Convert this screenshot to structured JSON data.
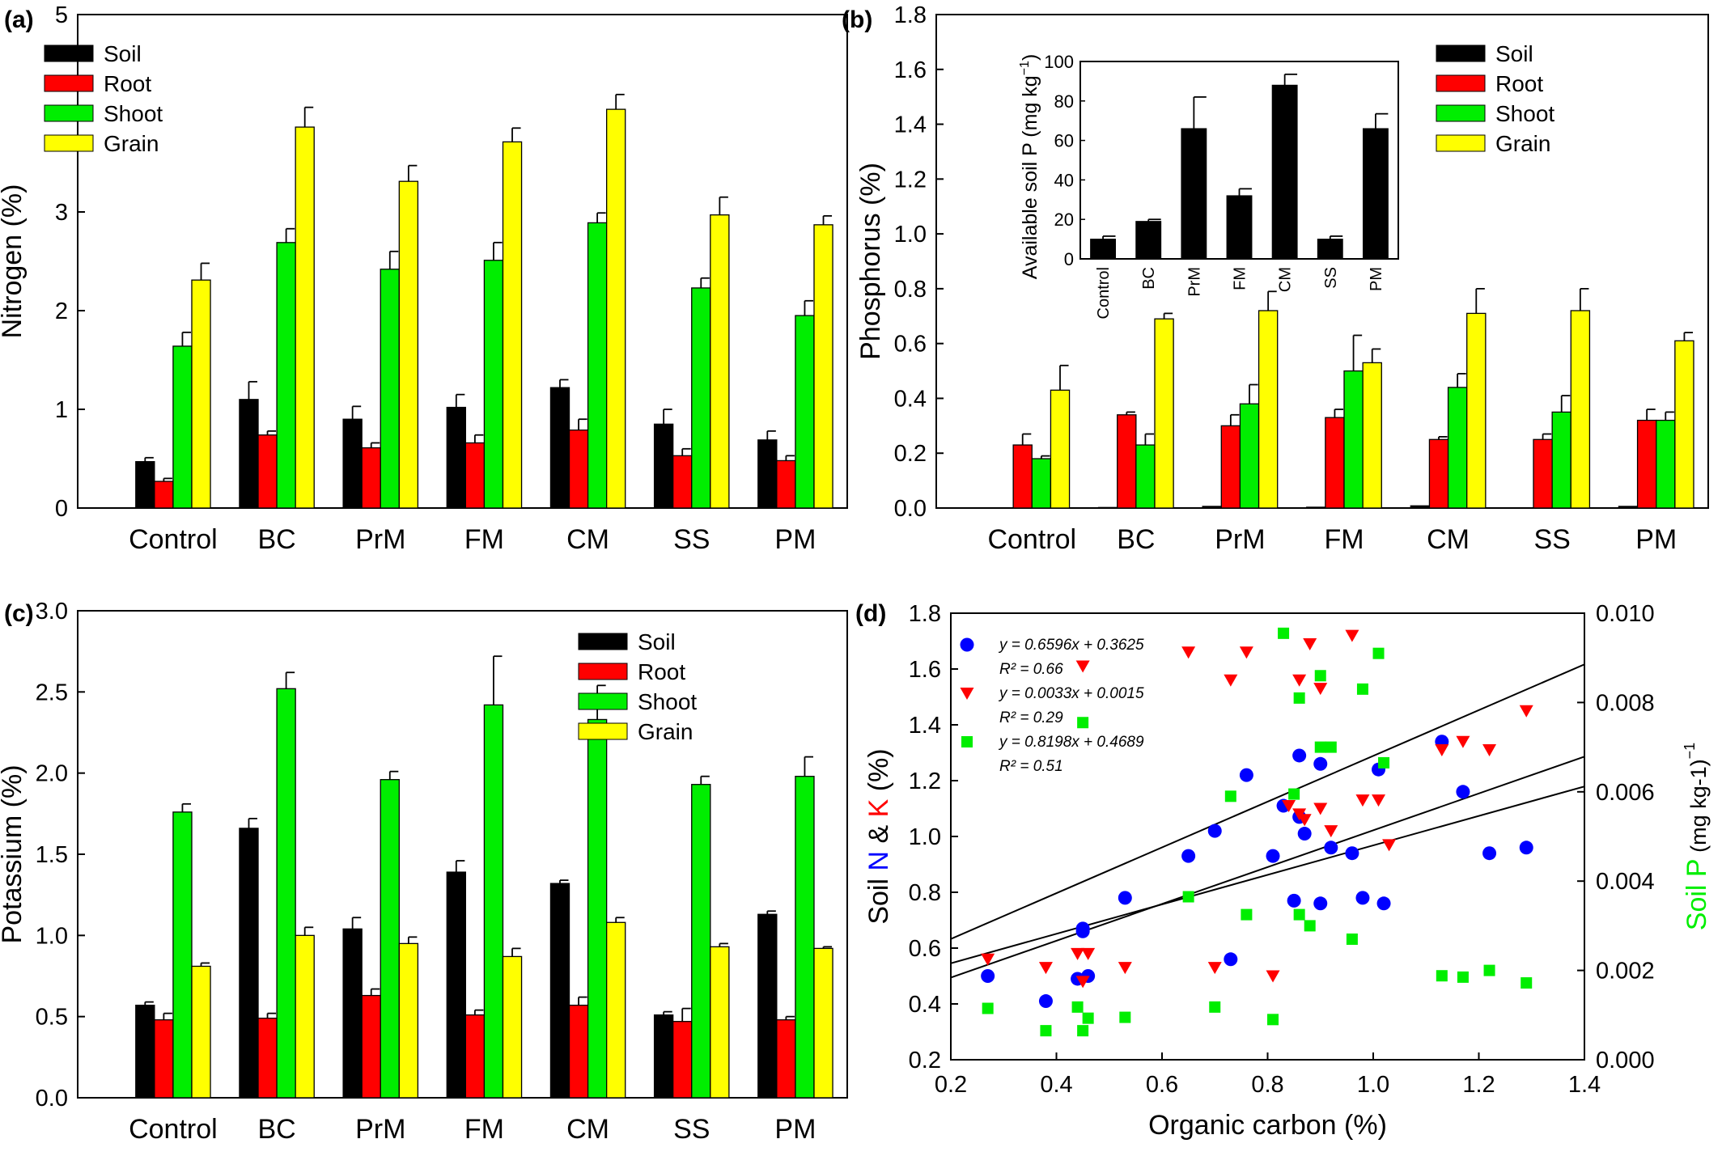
{
  "colors": {
    "soil": "#000000",
    "root": "#ff0000",
    "shoot": "#00ee00",
    "grain": "#ffff00",
    "scatter_n": "#0000ff",
    "scatter_k": "#ff0000",
    "scatter_p": "#00ee00"
  },
  "chart_data": [
    {
      "id": "a",
      "panel_label": "(a)",
      "type": "bar",
      "ylabel": "Nitrogen (%)",
      "xlabel": "",
      "ylim": [
        0,
        5
      ],
      "yticks": [
        0,
        1,
        2,
        3,
        4,
        5
      ],
      "ytick_labels": [
        "0",
        "1",
        "2",
        "3",
        "4",
        "5"
      ],
      "legend_position": "top-left",
      "categories": [
        "Control",
        "BC",
        "PrM",
        "FM",
        "CM",
        "SS",
        "PM"
      ],
      "series": [
        {
          "name": "Soil",
          "color": "#000000",
          "values": [
            0.47,
            1.1,
            0.9,
            1.02,
            1.22,
            0.85,
            0.69
          ],
          "errors": [
            0.04,
            0.18,
            0.13,
            0.13,
            0.08,
            0.15,
            0.09
          ]
        },
        {
          "name": "Root",
          "color": "#ff0000",
          "values": [
            0.27,
            0.74,
            0.61,
            0.66,
            0.79,
            0.53,
            0.48
          ],
          "errors": [
            0.03,
            0.04,
            0.05,
            0.08,
            0.11,
            0.07,
            0.05
          ]
        },
        {
          "name": "Shoot",
          "color": "#00ee00",
          "values": [
            1.64,
            2.69,
            2.42,
            2.51,
            2.89,
            2.23,
            1.95
          ],
          "errors": [
            0.14,
            0.14,
            0.18,
            0.18,
            0.1,
            0.1,
            0.15
          ]
        },
        {
          "name": "Grain",
          "color": "#ffff00",
          "values": [
            2.31,
            3.86,
            3.31,
            3.71,
            4.04,
            2.97,
            2.87
          ],
          "errors": [
            0.17,
            0.2,
            0.16,
            0.14,
            0.15,
            0.18,
            0.09
          ]
        }
      ]
    },
    {
      "id": "b",
      "panel_label": "(b)",
      "type": "bar",
      "ylabel": "Phosphorus (%)",
      "xlabel": "",
      "ylim": [
        0,
        1.8
      ],
      "yticks": [
        0,
        0.2,
        0.4,
        0.6,
        0.8,
        1.0,
        1.2,
        1.4,
        1.6,
        1.8
      ],
      "ytick_labels": [
        "0.0",
        "0.2",
        "0.4",
        "0.6",
        "0.8",
        "1.0",
        "1.2",
        "1.4",
        "1.6",
        "1.8"
      ],
      "legend_position": "top-right",
      "categories": [
        "Control",
        "BC",
        "PrM",
        "FM",
        "CM",
        "SS",
        "PM"
      ],
      "series": [
        {
          "name": "Soil",
          "color": "#000000",
          "values": [
            0.001,
            0.002,
            0.006,
            0.003,
            0.008,
            0.001,
            0.006
          ],
          "errors": [
            0,
            0,
            0,
            0,
            0,
            0,
            0
          ]
        },
        {
          "name": "Root",
          "color": "#ff0000",
          "values": [
            0.23,
            0.34,
            0.3,
            0.33,
            0.25,
            0.25,
            0.32
          ],
          "errors": [
            0.04,
            0.01,
            0.04,
            0.03,
            0.01,
            0.02,
            0.04
          ]
        },
        {
          "name": "Shoot",
          "color": "#00ee00",
          "values": [
            0.18,
            0.23,
            0.38,
            0.5,
            0.44,
            0.35,
            0.32
          ],
          "errors": [
            0.01,
            0.04,
            0.07,
            0.13,
            0.05,
            0.06,
            0.03
          ]
        },
        {
          "name": "Grain",
          "color": "#ffff00",
          "values": [
            0.43,
            0.69,
            0.72,
            0.53,
            0.71,
            0.72,
            0.61
          ],
          "errors": [
            0.09,
            0.02,
            0.07,
            0.05,
            0.09,
            0.08,
            0.03
          ]
        }
      ],
      "inset": {
        "type": "bar",
        "ylabel": "Available soil P (mg kg",
        "ylabel_sup": "−1",
        "ylabel_close": ")",
        "ylim": [
          0,
          100
        ],
        "yticks": [
          0,
          20,
          40,
          60,
          80,
          100
        ],
        "ytick_labels": [
          "0",
          "20",
          "40",
          "60",
          "80",
          "100"
        ],
        "categories": [
          "Control",
          "BC",
          "PrM",
          "FM",
          "CM",
          "SS",
          "PM"
        ],
        "values": [
          10,
          19,
          66,
          32,
          88,
          10,
          66
        ],
        "errors": [
          1.5,
          1.0,
          16,
          3.5,
          5.5,
          1.5,
          7.5
        ],
        "color": "#000000"
      }
    },
    {
      "id": "c",
      "panel_label": "(c)",
      "type": "bar",
      "ylabel": "Potassium (%)",
      "xlabel": "",
      "ylim": [
        0,
        3.0
      ],
      "yticks": [
        0,
        0.5,
        1.0,
        1.5,
        2.0,
        2.5,
        3.0
      ],
      "ytick_labels": [
        "0.0",
        "0.5",
        "1.0",
        "1.5",
        "2.0",
        "2.5",
        "3.0"
      ],
      "legend_position": "top-right",
      "categories": [
        "Control",
        "BC",
        "PrM",
        "FM",
        "CM",
        "SS",
        "PM"
      ],
      "series": [
        {
          "name": "Soil",
          "color": "#000000",
          "values": [
            0.57,
            1.66,
            1.04,
            1.39,
            1.32,
            0.51,
            1.13
          ],
          "errors": [
            0.02,
            0.06,
            0.07,
            0.07,
            0.02,
            0.02,
            0.02
          ]
        },
        {
          "name": "Root",
          "color": "#ff0000",
          "values": [
            0.48,
            0.49,
            0.63,
            0.51,
            0.57,
            0.47,
            0.48
          ],
          "errors": [
            0.04,
            0.03,
            0.04,
            0.03,
            0.05,
            0.08,
            0.02
          ]
        },
        {
          "name": "Shoot",
          "color": "#00ee00",
          "values": [
            1.76,
            2.52,
            1.96,
            2.42,
            2.33,
            1.93,
            1.98
          ],
          "errors": [
            0.05,
            0.1,
            0.05,
            0.3,
            0.21,
            0.05,
            0.12
          ]
        },
        {
          "name": "Grain",
          "color": "#ffff00",
          "values": [
            0.81,
            1.0,
            0.95,
            0.87,
            1.08,
            0.93,
            0.92
          ],
          "errors": [
            0.02,
            0.05,
            0.04,
            0.05,
            0.03,
            0.02,
            0.01
          ]
        }
      ]
    },
    {
      "id": "d",
      "panel_label": "(d)",
      "type": "scatter",
      "xlabel": "Organic carbon (%)",
      "ylabel_parts": [
        "Soil ",
        "N",
        " & ",
        "K",
        " (%)"
      ],
      "y2label_parts": [
        "Soil ",
        "P",
        " (mg kg-1)"
      ],
      "y2label_sup": "−1",
      "xlim": [
        0.2,
        1.4
      ],
      "ylim": [
        0.2,
        1.8
      ],
      "y2lim": [
        0.0,
        0.01
      ],
      "xticks": [
        0.2,
        0.4,
        0.6,
        0.8,
        1.0,
        1.2,
        1.4
      ],
      "xtick_labels": [
        "0.2",
        "0.4",
        "0.6",
        "0.8",
        "1.0",
        "1.2",
        "1.4"
      ],
      "yticks": [
        0.2,
        0.4,
        0.6,
        0.8,
        1.0,
        1.2,
        1.4,
        1.6,
        1.8
      ],
      "ytick_labels": [
        "0.2",
        "0.4",
        "0.6",
        "0.8",
        "1.0",
        "1.2",
        "1.4",
        "1.6",
        "1.8"
      ],
      "y2ticks": [
        0.0,
        0.002,
        0.004,
        0.006,
        0.008,
        0.01
      ],
      "y2tick_labels": [
        "0.000",
        "0.002",
        "0.004",
        "0.006",
        "0.008",
        "0.010"
      ],
      "legend_position": "top-left",
      "series": [
        {
          "marker": "circle",
          "color": "#0000ff",
          "axis": "left",
          "equation": "y = 0.6596x + 0.3625",
          "r2": "R² = 0.66",
          "fit": {
            "slope": 0.6596,
            "intercept": 0.3625
          },
          "points": [
            [
              0.27,
              0.5
            ],
            [
              0.38,
              0.41
            ],
            [
              0.44,
              0.49
            ],
            [
              0.45,
              0.66
            ],
            [
              0.45,
              0.67
            ],
            [
              0.46,
              0.5
            ],
            [
              0.53,
              0.78
            ],
            [
              0.65,
              0.93
            ],
            [
              0.7,
              1.02
            ],
            [
              0.73,
              0.56
            ],
            [
              0.76,
              1.22
            ],
            [
              0.81,
              0.93
            ],
            [
              0.83,
              1.11
            ],
            [
              0.85,
              0.77
            ],
            [
              0.86,
              1.07
            ],
            [
              0.86,
              1.29
            ],
            [
              0.87,
              1.01
            ],
            [
              0.9,
              1.26
            ],
            [
              0.9,
              0.76
            ],
            [
              0.92,
              0.96
            ],
            [
              0.96,
              0.94
            ],
            [
              0.98,
              0.78
            ],
            [
              1.01,
              1.24
            ],
            [
              1.02,
              0.76
            ],
            [
              1.13,
              1.34
            ],
            [
              1.17,
              1.16
            ],
            [
              1.22,
              0.94
            ],
            [
              1.29,
              0.96
            ]
          ]
        },
        {
          "marker": "triangle-down",
          "color": "#ff0000",
          "axis": "left",
          "equation": "y = 0.0033x + 0.0015",
          "r2": "R² = 0.29",
          "fit": {
            "slope": 0.0033,
            "intercept": 0.0015,
            "axis": "right"
          },
          "points": [
            [
              0.27,
              0.56
            ],
            [
              0.38,
              0.53
            ],
            [
              0.44,
              0.58
            ],
            [
              0.45,
              0.48
            ],
            [
              0.46,
              0.58
            ],
            [
              0.45,
              1.61
            ],
            [
              0.53,
              0.53
            ],
            [
              0.65,
              1.66
            ],
            [
              0.7,
              0.53
            ],
            [
              0.73,
              1.56
            ],
            [
              0.76,
              1.66
            ],
            [
              0.81,
              0.5
            ],
            [
              0.84,
              1.11
            ],
            [
              0.86,
              1.08
            ],
            [
              0.86,
              1.56
            ],
            [
              0.87,
              1.06
            ],
            [
              0.88,
              1.69
            ],
            [
              0.9,
              1.1
            ],
            [
              0.9,
              1.53
            ],
            [
              0.92,
              1.02
            ],
            [
              0.96,
              1.72
            ],
            [
              0.98,
              1.13
            ],
            [
              1.01,
              1.13
            ],
            [
              1.03,
              0.97
            ],
            [
              1.13,
              1.31
            ],
            [
              1.17,
              1.34
            ],
            [
              1.22,
              1.31
            ],
            [
              1.29,
              1.45
            ]
          ]
        },
        {
          "marker": "square",
          "color": "#00ee00",
          "axis": "right",
          "equation": "y = 0.8198x + 0.4689",
          "r2": "R² = 0.51",
          "fit": {
            "slope": 0.8198,
            "intercept": 0.4689,
            "axis": "left"
          },
          "points": [
            [
              0.27,
              0.00115
            ],
            [
              0.38,
              0.00065
            ],
            [
              0.44,
              0.00118
            ],
            [
              0.45,
              0.00755
            ],
            [
              0.45,
              0.00065
            ],
            [
              0.46,
              0.00093
            ],
            [
              0.53,
              0.00095
            ],
            [
              0.65,
              0.00365
            ],
            [
              0.7,
              0.00118
            ],
            [
              0.73,
              0.0059
            ],
            [
              0.76,
              0.00325
            ],
            [
              0.81,
              0.0009
            ],
            [
              0.83,
              0.00955
            ],
            [
              0.85,
              0.00595
            ],
            [
              0.86,
              0.00325
            ],
            [
              0.86,
              0.0081
            ],
            [
              0.88,
              0.003
            ],
            [
              0.9,
              0.007
            ],
            [
              0.9,
              0.0086
            ],
            [
              0.92,
              0.007
            ],
            [
              0.96,
              0.0027
            ],
            [
              0.98,
              0.0083
            ],
            [
              1.01,
              0.0091
            ],
            [
              1.02,
              0.00665
            ],
            [
              1.13,
              0.00188
            ],
            [
              1.17,
              0.00185
            ],
            [
              1.22,
              0.002
            ],
            [
              1.29,
              0.00172
            ]
          ]
        }
      ]
    }
  ]
}
